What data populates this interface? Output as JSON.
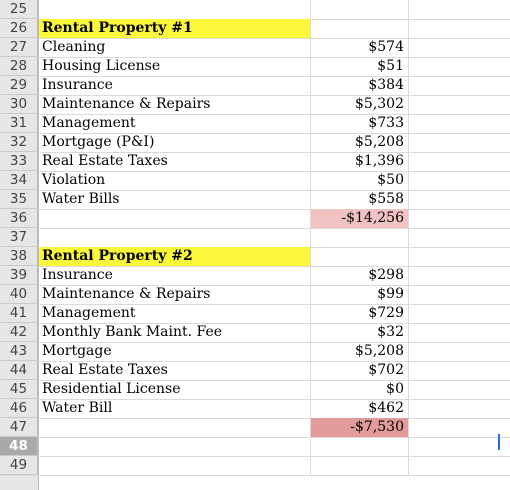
{
  "rows": [
    {
      "num": "25",
      "label": "",
      "value": ""
    },
    {
      "num": "26",
      "label": "Rental Property #1",
      "value": ""
    },
    {
      "num": "27",
      "label": "Cleaning",
      "value": "$574"
    },
    {
      "num": "28",
      "label": "Housing License",
      "value": "$51"
    },
    {
      "num": "29",
      "label": "Insurance",
      "value": "$384"
    },
    {
      "num": "30",
      "label": "Maintenance & Repairs",
      "value": "$5,302"
    },
    {
      "num": "31",
      "label": "Management",
      "value": "$733"
    },
    {
      "num": "32",
      "label": "Mortgage (P&I)",
      "value": "$5,208"
    },
    {
      "num": "33",
      "label": "Real Estate Taxes",
      "value": "$1,396"
    },
    {
      "num": "34",
      "label": "Violation",
      "value": "$50"
    },
    {
      "num": "35",
      "label": "Water Bills",
      "value": "$558"
    },
    {
      "num": "36",
      "label": "",
      "value": "-$14,256"
    },
    {
      "num": "37",
      "label": "",
      "value": ""
    },
    {
      "num": "38",
      "label": "Rental Property #2",
      "value": ""
    },
    {
      "num": "39",
      "label": "Insurance",
      "value": "$298"
    },
    {
      "num": "40",
      "label": "Maintenance & Repairs",
      "value": "$99"
    },
    {
      "num": "41",
      "label": "Management",
      "value": "$729"
    },
    {
      "num": "42",
      "label": "Monthly Bank Maint. Fee",
      "value": "$32"
    },
    {
      "num": "43",
      "label": "Mortgage",
      "value": "$5,208"
    },
    {
      "num": "44",
      "label": "Real Estate Taxes",
      "value": "$702"
    },
    {
      "num": "45",
      "label": "Residential License",
      "value": "$0"
    },
    {
      "num": "46",
      "label": "Water Bill",
      "value": "$462"
    },
    {
      "num": "47",
      "label": "",
      "value": "-$7,530"
    },
    {
      "num": "48",
      "label": "",
      "value": ""
    },
    {
      "num": "49",
      "label": "",
      "value": ""
    }
  ],
  "colors": {
    "header_fill": "#fbf83b",
    "total1_fill": "#f1c2c2",
    "total2_fill": "#e29a9a",
    "selected_row": "#a9a9a9"
  }
}
